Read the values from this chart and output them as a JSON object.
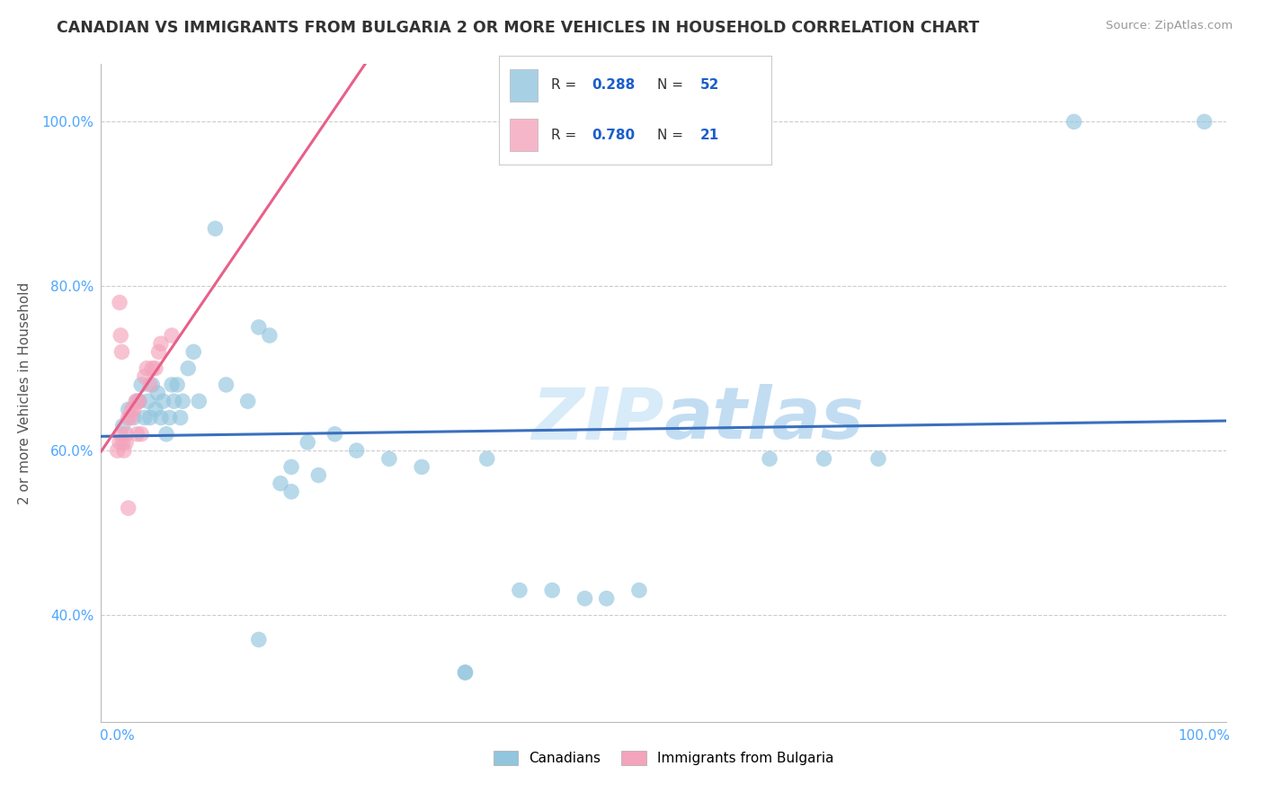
{
  "title": "CANADIAN VS IMMIGRANTS FROM BULGARIA 2 OR MORE VEHICLES IN HOUSEHOLD CORRELATION CHART",
  "source": "Source: ZipAtlas.com",
  "ylabel": "2 or more Vehicles in Household",
  "legend_blue_label": "Canadians",
  "legend_pink_label": "Immigrants from Bulgaria",
  "R_blue_text": "R = 0.288",
  "N_blue_text": "N = 52",
  "R_pink_text": "R = 0.780",
  "N_pink_text": "N = 21",
  "blue_scatter_color": "#92c5de",
  "pink_scatter_color": "#f4a4bc",
  "blue_line_color": "#3a6fbe",
  "pink_line_color": "#e8608a",
  "title_color": "#333333",
  "source_color": "#999999",
  "tick_color": "#4da6ff",
  "grid_color": "#cccccc",
  "watermark_zip_color": "#d0e8f8",
  "watermark_atlas_color": "#b8d8f0",
  "legend_text_color": "#333333",
  "legend_value_color": "#1a5ecc",
  "canadians_x": [
    0.005,
    0.01,
    0.015,
    0.018,
    0.02,
    0.022,
    0.025,
    0.028,
    0.03,
    0.032,
    0.035,
    0.037,
    0.04,
    0.042,
    0.045,
    0.048,
    0.05,
    0.052,
    0.055,
    0.058,
    0.06,
    0.065,
    0.07,
    0.075,
    0.08,
    0.085,
    0.09,
    0.095,
    0.1,
    0.105,
    0.11,
    0.12,
    0.13,
    0.14,
    0.15,
    0.155,
    0.16,
    0.175,
    0.185,
    0.2,
    0.22,
    0.25,
    0.28,
    0.32,
    0.34,
    0.37,
    0.4,
    0.45,
    0.48,
    0.6,
    0.65,
    0.88
  ],
  "canadians_y": [
    0.62,
    0.64,
    0.63,
    0.66,
    0.66,
    0.68,
    0.65,
    0.66,
    0.64,
    0.68,
    0.66,
    0.67,
    0.64,
    0.66,
    0.62,
    0.64,
    0.68,
    0.66,
    0.68,
    0.64,
    0.66,
    0.7,
    0.72,
    0.66,
    0.68,
    0.7,
    0.86,
    0.64,
    0.68,
    0.64,
    0.68,
    0.66,
    0.74,
    0.74,
    0.55,
    0.58,
    0.6,
    0.61,
    0.56,
    0.62,
    0.6,
    0.59,
    0.58,
    0.59,
    0.57,
    0.59,
    0.43,
    0.43,
    0.42,
    0.59,
    0.59,
    1.0
  ],
  "bulgarians_x": [
    0.003,
    0.005,
    0.006,
    0.008,
    0.008,
    0.01,
    0.012,
    0.013,
    0.015,
    0.017,
    0.018,
    0.02,
    0.022,
    0.025,
    0.027,
    0.03,
    0.032,
    0.035,
    0.038,
    0.04,
    0.05
  ],
  "bulgarians_y": [
    0.6,
    0.6,
    0.59,
    0.6,
    0.61,
    0.64,
    0.63,
    0.63,
    0.64,
    0.65,
    0.61,
    0.65,
    0.62,
    0.68,
    0.69,
    0.68,
    0.7,
    0.69,
    0.7,
    0.72,
    0.73
  ],
  "xlim": [
    0.0,
    1.0
  ],
  "ylim": [
    0.28,
    1.06
  ],
  "ytick_vals": [
    0.4,
    0.6,
    0.8,
    1.0
  ],
  "ytick_labels": [
    "40.0%",
    "60.0%",
    "80.0%",
    "100.0%"
  ],
  "xtick_vals": [
    0.0,
    1.0
  ],
  "xtick_labels": [
    "0.0%",
    "100.0%"
  ]
}
